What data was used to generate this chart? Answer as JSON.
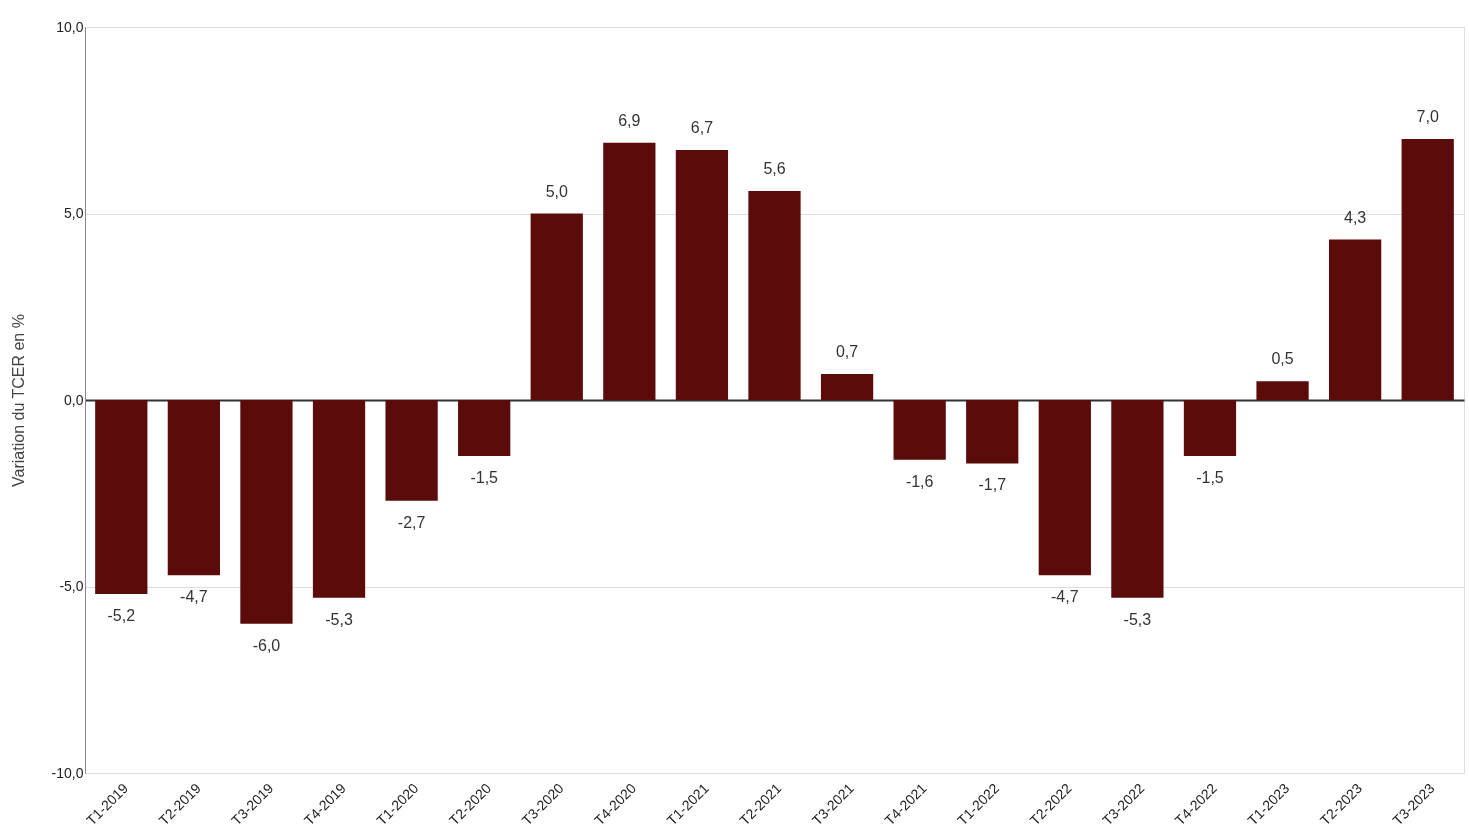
{
  "chart_data": {
    "type": "bar",
    "ylabel": "Variation du TCER en %",
    "categories": [
      "T1-2019",
      "T2-2019",
      "T3-2019",
      "T4-2019",
      "T1-2020",
      "T2-2020",
      "T3-2020",
      "T4-2020",
      "T1-2021",
      "T2-2021",
      "T3-2021",
      "T4-2021",
      "T1-2022",
      "T2-2022",
      "T3-2022",
      "T4-2022",
      "T1-2023",
      "T2-2023",
      "T3-2023"
    ],
    "values": [
      -5.2,
      -4.7,
      -6.0,
      -5.3,
      -2.7,
      -1.5,
      5.0,
      6.9,
      6.7,
      5.6,
      0.7,
      -1.6,
      -1.7,
      -4.7,
      -5.3,
      -1.5,
      0.5,
      4.3,
      7.0
    ],
    "value_labels": [
      "-5,2",
      "-4,7",
      "-6,0",
      "-5,3",
      "-2,7",
      "-1,5",
      "5,0",
      "6,9",
      "6,7",
      "5,6",
      "0,7",
      "-1,6",
      "-1,7",
      "-4,7",
      "-5,3",
      "-1,5",
      "0,5",
      "4,3",
      "7,0"
    ],
    "color": "#5c0b0b",
    "ylim": [
      -10,
      10
    ],
    "yticks": [
      {
        "value": -10,
        "label": "-10,0"
      },
      {
        "value": -5,
        "label": "-5,0"
      },
      {
        "value": 0,
        "label": "0,0"
      },
      {
        "value": 5,
        "label": "5,0"
      },
      {
        "value": 10,
        "label": "10,0"
      }
    ],
    "grid": "y"
  }
}
